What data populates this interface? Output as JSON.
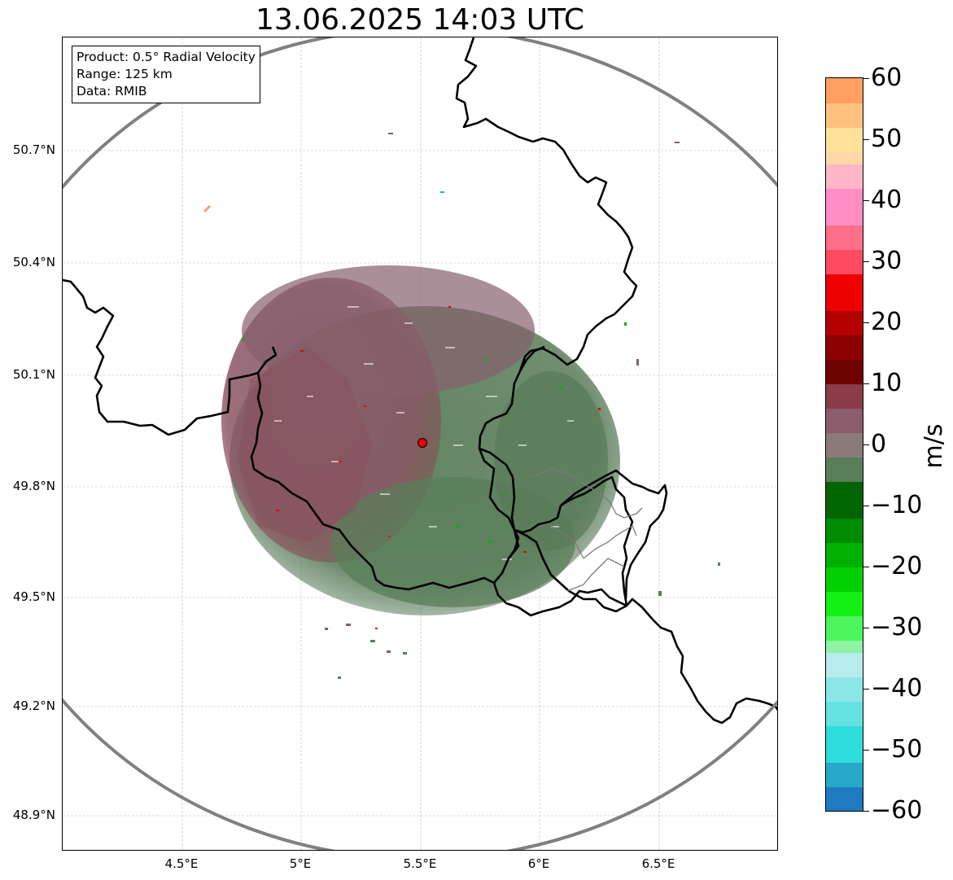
{
  "title": "13.06.2025 14:03 UTC",
  "info_box": {
    "product": "Product: 0.5° Radial Velocity",
    "range": "Range: 125 km",
    "data": "Data: RMIB"
  },
  "latitude_labels": [
    "50.7°N",
    "50.4°N",
    "50.1°N",
    "49.8°N",
    "49.5°N",
    "49.2°N",
    "48.9°N"
  ],
  "longitude_labels": [
    "4.5°E",
    "5°E",
    "5.5°E",
    "6°E",
    "6.5°E"
  ],
  "colorbar": {
    "unit": "m/s",
    "tick_labels": [
      "60",
      "50",
      "40",
      "30",
      "20",
      "10",
      "0",
      "−10",
      "−20",
      "−30",
      "−40",
      "−50",
      "−60"
    ],
    "min": -60,
    "max": 60,
    "segments": [
      {
        "from": -60,
        "to": -56,
        "color": "#1f7bc0"
      },
      {
        "from": -56,
        "to": -52,
        "color": "#26a9c9"
      },
      {
        "from": -52,
        "to": -46,
        "color": "#2fdcdc"
      },
      {
        "from": -46,
        "to": -42,
        "color": "#64e2e2"
      },
      {
        "from": -42,
        "to": -38,
        "color": "#8de6e6"
      },
      {
        "from": -38,
        "to": -34,
        "color": "#b6ecec"
      },
      {
        "from": -34,
        "to": -32,
        "color": "#8ef2a4"
      },
      {
        "from": -32,
        "to": -28,
        "color": "#4cf55c"
      },
      {
        "from": -28,
        "to": -24,
        "color": "#14f014"
      },
      {
        "from": -24,
        "to": -20,
        "color": "#00d000"
      },
      {
        "from": -20,
        "to": -16,
        "color": "#00b000"
      },
      {
        "from": -16,
        "to": -12,
        "color": "#008c00"
      },
      {
        "from": -12,
        "to": -6,
        "color": "#006400"
      },
      {
        "from": -6,
        "to": -2,
        "color": "#5a7d5a"
      },
      {
        "from": -2,
        "to": 2,
        "color": "#8a7a78"
      },
      {
        "from": 2,
        "to": 6,
        "color": "#8a5c6c"
      },
      {
        "from": 6,
        "to": 10,
        "color": "#8a3c48"
      },
      {
        "from": 10,
        "to": 14,
        "color": "#6e0000"
      },
      {
        "from": 14,
        "to": 18,
        "color": "#8c0000"
      },
      {
        "from": 18,
        "to": 22,
        "color": "#b40000"
      },
      {
        "from": 22,
        "to": 28,
        "color": "#ef0000"
      },
      {
        "from": 28,
        "to": 32,
        "color": "#ff4a62"
      },
      {
        "from": 32,
        "to": 36,
        "color": "#ff6f8a"
      },
      {
        "from": 36,
        "to": 42,
        "color": "#ff8ec4"
      },
      {
        "from": 42,
        "to": 46,
        "color": "#ffb6c8"
      },
      {
        "from": 46,
        "to": 48,
        "color": "#ffd8a8"
      },
      {
        "from": 48,
        "to": 52,
        "color": "#ffe09a"
      },
      {
        "from": 52,
        "to": 56,
        "color": "#ffc27e"
      },
      {
        "from": 56,
        "to": 60,
        "color": "#ffa060"
      }
    ]
  },
  "radar_site": {
    "lon": 5.505,
    "lat": 49.914
  },
  "colors": {
    "range_ring": "#808080",
    "border": "#000000",
    "site_marker": "#e8000b",
    "echo_receding": "#8a5c6c",
    "echo_approaching": "#5a7d5a"
  }
}
